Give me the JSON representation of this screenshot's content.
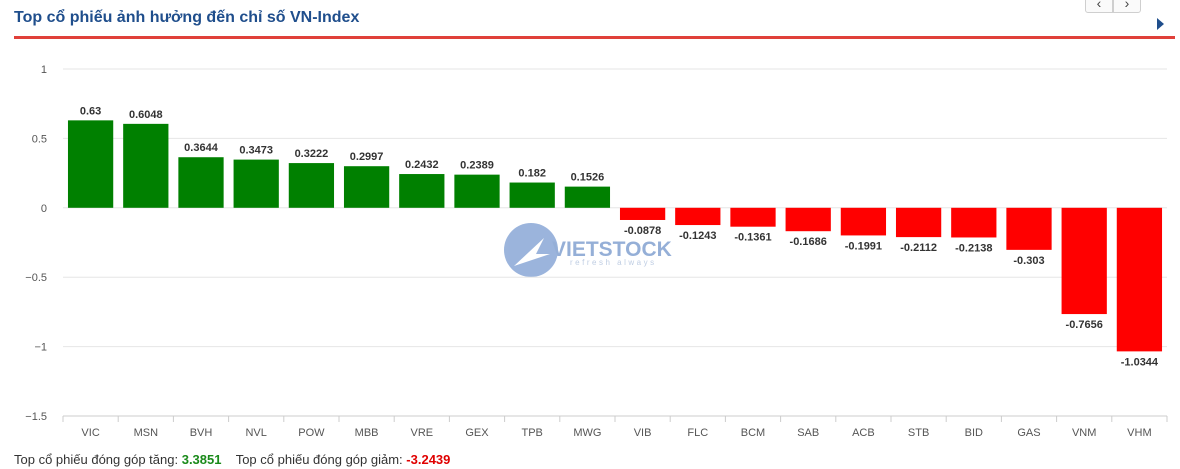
{
  "header": {
    "title": "Top cổ phiếu ảnh hưởng đến chỉ số VN-Index",
    "prev_label": "‹",
    "next_label": "›"
  },
  "footer": {
    "up_label": "Top cổ phiếu đóng góp tăng:",
    "up_value": "3.3851",
    "down_label": "Top cổ phiếu đóng góp giảm:",
    "down_value": "-3.2439"
  },
  "colors": {
    "positive": "#008000",
    "negative": "#ff0000",
    "title": "#1f4e8c",
    "underline": "#e0403a"
  },
  "chart_data": {
    "type": "bar",
    "categories": [
      "VIC",
      "MSN",
      "BVH",
      "NVL",
      "POW",
      "MBB",
      "VRE",
      "GEX",
      "TPB",
      "MWG",
      "VIB",
      "FLC",
      "BCM",
      "SAB",
      "ACB",
      "STB",
      "BID",
      "GAS",
      "VNM",
      "VHM"
    ],
    "values": [
      0.63,
      0.6048,
      0.3644,
      0.3473,
      0.3222,
      0.2997,
      0.2432,
      0.2389,
      0.182,
      0.1526,
      -0.0878,
      -0.1243,
      -0.1361,
      -0.1686,
      -0.1991,
      -0.2112,
      -0.2138,
      -0.303,
      -0.7656,
      -1.0344
    ],
    "data_labels": [
      "0.63",
      "0.6048",
      "0.3644",
      "0.3473",
      "0.3222",
      "0.2997",
      "0.2432",
      "0.2389",
      "0.182",
      "0.1526",
      "-0.0878",
      "-0.1243",
      "-0.1361",
      "-0.1686",
      "-0.1991",
      "-0.2112",
      "-0.2138",
      "-0.303",
      "-0.7656",
      "-1.0344"
    ],
    "y_ticks": [
      "1",
      "0.5",
      "0",
      "−0.5",
      "−1",
      "−1.5"
    ],
    "ylim": [
      -1.5,
      1
    ],
    "grid": true,
    "legend": "none"
  }
}
